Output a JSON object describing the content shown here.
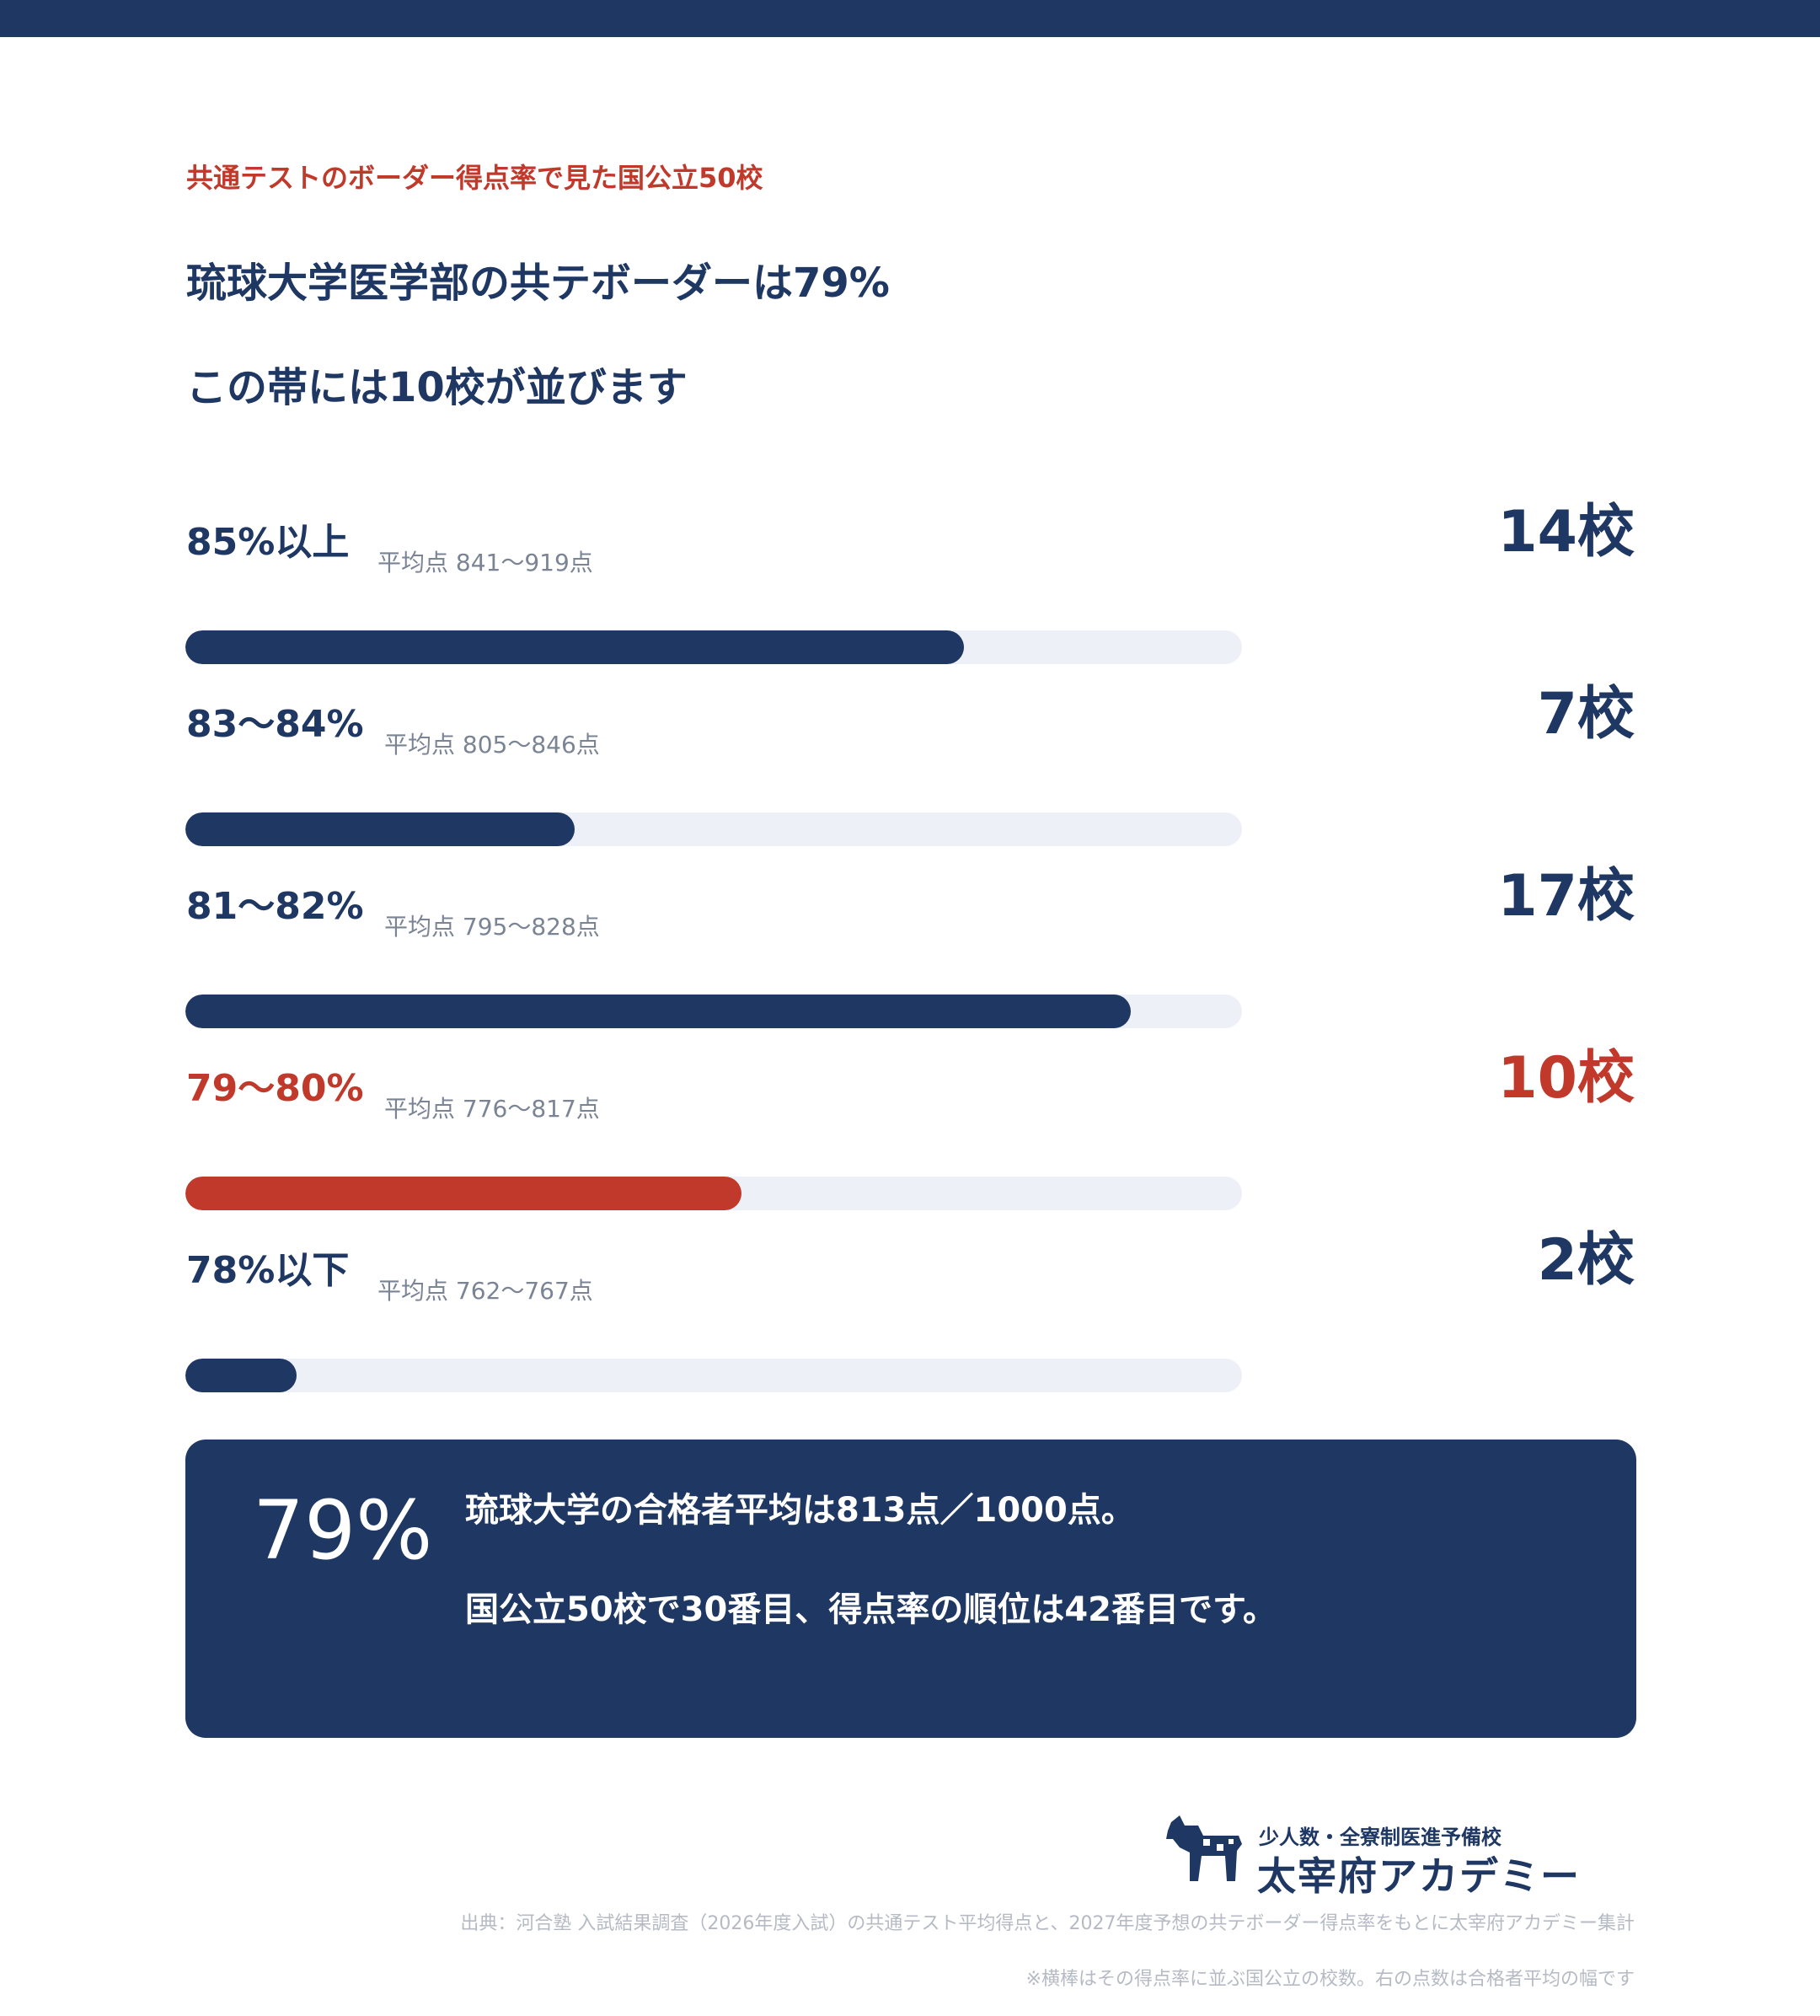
{
  "header": {
    "eyebrow": "共通テストのボーダー得点率で見た国公立50校",
    "headline_1": "琉球大学医学部の共テボーダーは79%",
    "headline_2": "この帯には10校が並びます"
  },
  "chart_data": {
    "type": "bar",
    "orientation": "horizontal",
    "categories": [
      "85%以上",
      "83〜84%",
      "81〜82%",
      "79〜80%",
      "78%以下"
    ],
    "values": [
      14,
      7,
      17,
      10,
      2
    ],
    "value_labels": [
      "14校",
      "7校",
      "17校",
      "10校",
      "2校"
    ],
    "avg_labels": [
      "平均点 841〜919点",
      "平均点 805〜846点",
      "平均点 795〜828点",
      "平均点 776〜817点",
      "平均点 762〜767点"
    ],
    "highlight_index": 3,
    "xlim": [
      0,
      19
    ],
    "colors": {
      "bar": "#1f3763",
      "highlight": "#c0392b",
      "track": "#edf0f7"
    }
  },
  "summary": {
    "big_value": "79%",
    "line_1": "琉球大学の合格者平均は813点／1000点。",
    "line_2": "国公立50校で30番目、得点率の順位は42番目です。"
  },
  "logo": {
    "tagline": "少人数・全寮制医進予備校",
    "name": "太宰府アカデミー"
  },
  "footer": {
    "source": "出典：河合塾 入試結果調査（2026年度入試）の共通テスト平均得点と、2027年度予想の共テボーダー得点率をもとに太宰府アカデミー集計",
    "note": "※横棒はその得点率に並ぶ国公立の校数。右の点数は合格者平均の幅です"
  }
}
